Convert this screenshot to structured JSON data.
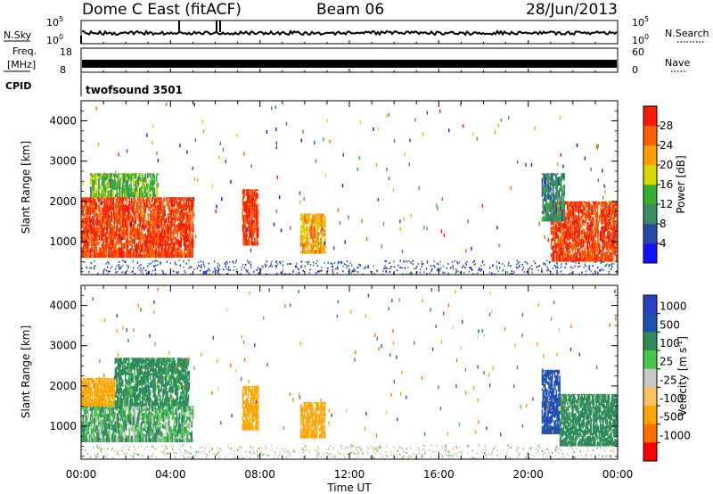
{
  "header": {
    "station": "Dome C East (fitACF)",
    "beam": "Beam 06",
    "date": "28/Jun/2013"
  },
  "status_panels": {
    "nsky_label": "N.Sky",
    "nsky_ticks_left": [
      "10^5",
      "10^0"
    ],
    "nsearch_label": "N.Search",
    "nsearch_ticks_right": [
      "10^5",
      "10^0"
    ],
    "freq_label_line1": "Freq.",
    "freq_label_line2": "[MHz]",
    "freq_ticks": [
      "18",
      "8"
    ],
    "nave_label": "Nave",
    "nave_ticks": [
      "60",
      "0"
    ],
    "cpid_label": "CPID",
    "cpid_value": "twofsound 3501"
  },
  "colors": {
    "power_scale": [
      "#1010ff",
      "#2848a8",
      "#3c8a64",
      "#33b033",
      "#d8d800",
      "#ffa000",
      "#ff6000",
      "#ff1800"
    ],
    "velocity_scale": [
      "#ff0000",
      "#ff7000",
      "#ffa500",
      "#ffc060",
      "#c8c8c8",
      "#46c846",
      "#2e8b57",
      "#1e50b4",
      "#2840c8"
    ]
  },
  "chart_data": [
    {
      "type": "heatmap",
      "name": "power",
      "xlabel": "",
      "ylabel": "Slant Range [km]",
      "yticks": [
        "1000",
        "2000",
        "3000",
        "4000"
      ],
      "ylim": [
        180,
        4500
      ],
      "xlim": [
        0,
        24
      ],
      "colorbar_label": "Power [dB]",
      "colorbar_ticks": [
        "4",
        "8",
        "12",
        "16",
        "20",
        "24",
        "28"
      ],
      "colorbar_range": [
        0,
        32
      ],
      "echo_regions": [
        {
          "t0": 0.0,
          "t1": 5.0,
          "r0": 600,
          "r1": 2100,
          "value": 28
        },
        {
          "t0": 0.4,
          "t1": 3.4,
          "r0": 2100,
          "r1": 2700,
          "value": 14
        },
        {
          "t0": 7.2,
          "t1": 7.9,
          "r0": 900,
          "r1": 2300,
          "value": 28
        },
        {
          "t0": 9.8,
          "t1": 10.9,
          "r0": 700,
          "r1": 1700,
          "value": 22
        },
        {
          "t0": 21.0,
          "t1": 24.0,
          "r0": 500,
          "r1": 2000,
          "value": 28
        },
        {
          "t0": 20.6,
          "t1": 21.6,
          "r0": 1500,
          "r1": 2700,
          "value": 10
        }
      ]
    },
    {
      "type": "heatmap",
      "name": "velocity",
      "xlabel": "Time UT",
      "ylabel": "Slant Range [km]",
      "xticks": [
        "00:00",
        "04:00",
        "08:00",
        "12:00",
        "16:00",
        "20:00",
        "00:00"
      ],
      "yticks": [
        "1000",
        "2000",
        "3000",
        "4000"
      ],
      "ylim": [
        180,
        4500
      ],
      "xlim": [
        0,
        24
      ],
      "colorbar_label": "Velocity [m s^-1]",
      "colorbar_ticks": [
        "1000",
        "500",
        "100",
        "25",
        "-25",
        "-100",
        "-500",
        "-1000"
      ],
      "echo_regions": [
        {
          "t0": 0.0,
          "t1": 5.0,
          "r0": 600,
          "r1": 1500,
          "value": 100
        },
        {
          "t0": 0.0,
          "t1": 1.5,
          "r0": 1500,
          "r1": 2200,
          "value": -300
        },
        {
          "t0": 1.5,
          "t1": 4.8,
          "r0": 1500,
          "r1": 2700,
          "value": 200
        },
        {
          "t0": 7.2,
          "t1": 7.9,
          "r0": 900,
          "r1": 2000,
          "value": -300
        },
        {
          "t0": 9.8,
          "t1": 10.9,
          "r0": 700,
          "r1": 1600,
          "value": -200
        },
        {
          "t0": 20.6,
          "t1": 21.4,
          "r0": 800,
          "r1": 2400,
          "value": 800
        },
        {
          "t0": 21.4,
          "t1": 24.0,
          "r0": 500,
          "r1": 1800,
          "value": 300
        }
      ]
    }
  ]
}
